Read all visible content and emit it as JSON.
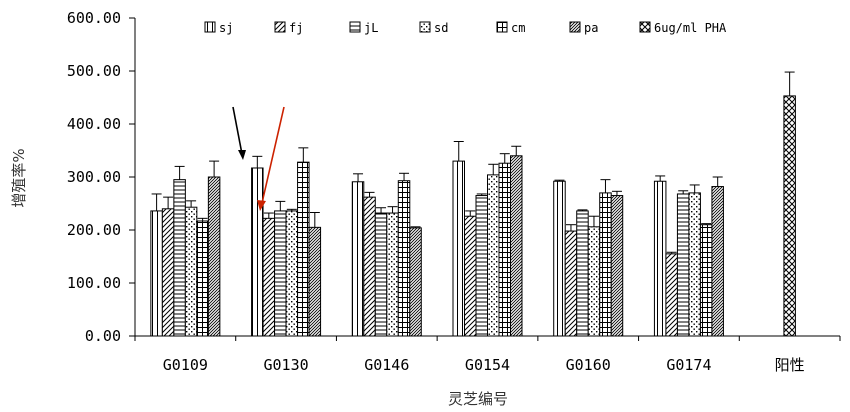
{
  "chart_data": {
    "type": "bar",
    "title": "",
    "xlabel": "灵芝编号",
    "ylabel": "增殖率%",
    "ylim": [
      0,
      600
    ],
    "y_ticks": [
      "0.00",
      "100.00",
      "200.00",
      "300.00",
      "400.00",
      "500.00",
      "600.00"
    ],
    "grid": false,
    "legend_position": "top",
    "categories": [
      "G0109",
      "G0130",
      "G0146",
      "G0154",
      "G0160",
      "G0174",
      "阳性"
    ],
    "series": [
      {
        "name": "sj",
        "pattern": "vertical",
        "values": [
          236,
          317,
          291,
          330,
          292,
          292,
          null
        ],
        "errors": [
          32,
          22,
          15,
          37,
          2,
          10,
          null
        ]
      },
      {
        "name": "fj",
        "pattern": "diagonal",
        "values": [
          240,
          222,
          262,
          226,
          198,
          155,
          null
        ],
        "errors": [
          22,
          10,
          9,
          10,
          12,
          3,
          null
        ]
      },
      {
        "name": "jL",
        "pattern": "horizontal",
        "values": [
          295,
          236,
          232,
          265,
          236,
          268,
          null
        ],
        "errors": [
          25,
          18,
          10,
          3,
          2,
          6,
          null
        ]
      },
      {
        "name": "sd",
        "pattern": "dotted",
        "values": [
          243,
          236,
          232,
          304,
          206,
          270,
          null
        ],
        "errors": [
          12,
          3,
          12,
          20,
          20,
          15,
          null
        ]
      },
      {
        "name": "cm",
        "pattern": "grid",
        "values": [
          217,
          328,
          293,
          326,
          270,
          210,
          null
        ],
        "errors": [
          5,
          27,
          14,
          18,
          25,
          2,
          null
        ]
      },
      {
        "name": "pa",
        "pattern": "diagonal-dense",
        "values": [
          300,
          205,
          204,
          340,
          265,
          282,
          null
        ],
        "errors": [
          30,
          28,
          2,
          18,
          8,
          18,
          null
        ]
      },
      {
        "name": "6ug/ml PHA",
        "pattern": "crosshatch",
        "values": [
          null,
          null,
          null,
          null,
          null,
          null,
          453
        ],
        "errors": [
          null,
          null,
          null,
          null,
          null,
          null,
          45
        ]
      }
    ],
    "annotations": [
      {
        "type": "arrow",
        "color": "#000000",
        "points_to": "G0130 sj"
      },
      {
        "type": "arrow",
        "color": "#cc2200",
        "points_to": "G0130 fj"
      }
    ]
  }
}
